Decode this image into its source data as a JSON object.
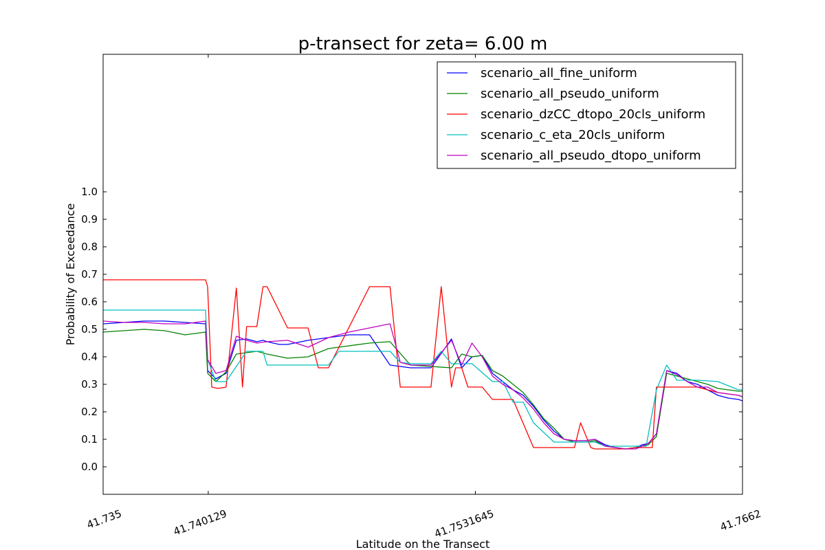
{
  "chart_data": {
    "type": "line",
    "title": "p-transect for zeta= 6.00 m",
    "xlabel": "Latitude on the Transect",
    "ylabel": "Probability of Exceedance",
    "xlim": [
      41.735,
      41.7662
    ],
    "ylim": [
      -0.1,
      1.5
    ],
    "xticks": [
      41.735,
      41.740129,
      41.7531645,
      41.7662
    ],
    "xtick_labels": [
      "41.735",
      "41.740129",
      "41.7531645",
      "41.7662"
    ],
    "yticks": [
      0.0,
      0.1,
      0.2,
      0.3,
      0.4,
      0.5,
      0.6,
      0.7,
      0.8,
      0.9,
      1.0
    ],
    "ytick_labels": [
      "0.0",
      "0.1",
      "0.2",
      "0.3",
      "0.4",
      "0.5",
      "0.6",
      "0.7",
      "0.8",
      "0.9",
      "1.0"
    ],
    "grid": false,
    "legend_position": "top-right",
    "series": [
      {
        "name": "scenario_all_fine_uniform",
        "color": "#0000ff",
        "x": [
          41.735,
          41.736,
          41.737,
          41.738,
          41.739,
          41.74,
          41.7401,
          41.7405,
          41.741,
          41.7415,
          41.742,
          41.7425,
          41.7428,
          41.743,
          41.7433,
          41.7436,
          41.744,
          41.745,
          41.746,
          41.747,
          41.748,
          41.749,
          41.75,
          41.751,
          41.752,
          41.7525,
          41.753,
          41.7535,
          41.754,
          41.7545,
          41.755,
          41.7555,
          41.756,
          41.7565,
          41.757,
          41.7575,
          41.758,
          41.7585,
          41.759,
          41.7595,
          41.76,
          41.7605,
          41.761,
          41.7613,
          41.7616,
          41.762,
          41.7625,
          41.763,
          41.7635,
          41.764,
          41.7645,
          41.765,
          41.7655,
          41.766,
          41.7662
        ],
        "y": [
          0.52,
          0.525,
          0.53,
          0.53,
          0.525,
          0.52,
          0.35,
          0.32,
          0.34,
          0.46,
          0.465,
          0.455,
          0.46,
          0.455,
          0.45,
          0.445,
          0.445,
          0.46,
          0.47,
          0.48,
          0.48,
          0.37,
          0.36,
          0.36,
          0.465,
          0.36,
          0.4,
          0.405,
          0.34,
          0.31,
          0.28,
          0.26,
          0.22,
          0.17,
          0.13,
          0.1,
          0.095,
          0.095,
          0.1,
          0.08,
          0.07,
          0.065,
          0.07,
          0.08,
          0.085,
          0.12,
          0.35,
          0.34,
          0.31,
          0.3,
          0.28,
          0.26,
          0.25,
          0.245,
          0.24
        ]
      },
      {
        "name": "scenario_all_pseudo_uniform",
        "color": "#008000",
        "x": [
          41.735,
          41.736,
          41.737,
          41.738,
          41.739,
          41.74,
          41.7401,
          41.7405,
          41.741,
          41.7415,
          41.742,
          41.7425,
          41.743,
          41.744,
          41.745,
          41.746,
          41.747,
          41.748,
          41.749,
          41.75,
          41.751,
          41.752,
          41.7525,
          41.753,
          41.7535,
          41.754,
          41.7545,
          41.755,
          41.7555,
          41.756,
          41.7565,
          41.757,
          41.7575,
          41.758,
          41.7585,
          41.759,
          41.7595,
          41.76,
          41.7605,
          41.761,
          41.7613,
          41.7616,
          41.762,
          41.7625,
          41.763,
          41.7635,
          41.764,
          41.7645,
          41.765,
          41.7655,
          41.766,
          41.7662
        ],
        "y": [
          0.49,
          0.495,
          0.5,
          0.495,
          0.48,
          0.49,
          0.34,
          0.31,
          0.345,
          0.41,
          0.415,
          0.42,
          0.41,
          0.395,
          0.4,
          0.43,
          0.44,
          0.45,
          0.455,
          0.37,
          0.365,
          0.36,
          0.41,
          0.4,
          0.405,
          0.35,
          0.33,
          0.3,
          0.27,
          0.225,
          0.175,
          0.14,
          0.1,
          0.09,
          0.09,
          0.095,
          0.075,
          0.07,
          0.065,
          0.07,
          0.075,
          0.08,
          0.11,
          0.34,
          0.33,
          0.32,
          0.31,
          0.3,
          0.285,
          0.28,
          0.275,
          0.275
        ]
      },
      {
        "name": "scenario_dzCC_dtopo_20cls_uniform",
        "color": "#ff0000",
        "x": [
          41.735,
          41.737,
          41.74,
          41.7401,
          41.7403,
          41.7406,
          41.741,
          41.7415,
          41.7418,
          41.742,
          41.7425,
          41.7428,
          41.743,
          41.744,
          41.745,
          41.7455,
          41.746,
          41.748,
          41.749,
          41.7495,
          41.75,
          41.751,
          41.7515,
          41.752,
          41.7522,
          41.7525,
          41.7528,
          41.753,
          41.7535,
          41.754,
          41.7545,
          41.755,
          41.756,
          41.757,
          41.758,
          41.7583,
          41.7588,
          41.759,
          41.76,
          41.7605,
          41.761,
          41.7615,
          41.7618,
          41.762,
          41.7625,
          41.763,
          41.764,
          41.765,
          41.766,
          41.7662
        ],
        "y": [
          0.68,
          0.68,
          0.68,
          0.655,
          0.29,
          0.285,
          0.29,
          0.65,
          0.29,
          0.51,
          0.51,
          0.655,
          0.655,
          0.505,
          0.505,
          0.36,
          0.36,
          0.655,
          0.655,
          0.29,
          0.29,
          0.29,
          0.655,
          0.29,
          0.36,
          0.36,
          0.29,
          0.29,
          0.29,
          0.245,
          0.245,
          0.245,
          0.07,
          0.07,
          0.07,
          0.16,
          0.07,
          0.065,
          0.065,
          0.065,
          0.07,
          0.07,
          0.07,
          0.29,
          0.29,
          0.29,
          0.29,
          0.27,
          0.26,
          0.255
        ]
      },
      {
        "name": "scenario_c_eta_20cls_uniform",
        "color": "#00bfbf",
        "x": [
          41.735,
          41.737,
          41.74,
          41.7401,
          41.7405,
          41.741,
          41.742,
          41.7428,
          41.743,
          41.744,
          41.745,
          41.746,
          41.7465,
          41.748,
          41.749,
          41.7495,
          41.75,
          41.751,
          41.7515,
          41.752,
          41.753,
          41.754,
          41.7545,
          41.755,
          41.7555,
          41.756,
          41.757,
          41.758,
          41.759,
          41.7595,
          41.76,
          41.761,
          41.7615,
          41.762,
          41.7625,
          41.763,
          41.764,
          41.765,
          41.766,
          41.7662
        ],
        "y": [
          0.57,
          0.57,
          0.57,
          0.39,
          0.31,
          0.31,
          0.42,
          0.42,
          0.37,
          0.37,
          0.37,
          0.37,
          0.42,
          0.42,
          0.42,
          0.38,
          0.375,
          0.375,
          0.42,
          0.375,
          0.375,
          0.31,
          0.31,
          0.235,
          0.235,
          0.16,
          0.09,
          0.09,
          0.09,
          0.075,
          0.075,
          0.075,
          0.075,
          0.28,
          0.37,
          0.315,
          0.315,
          0.31,
          0.28,
          0.28
        ]
      },
      {
        "name": "scenario_all_pseudo_dtopo_uniform",
        "color": "#bf00bf",
        "x": [
          41.735,
          41.736,
          41.737,
          41.738,
          41.739,
          41.74,
          41.7401,
          41.7405,
          41.741,
          41.7415,
          41.742,
          41.7425,
          41.743,
          41.744,
          41.745,
          41.746,
          41.747,
          41.748,
          41.749,
          41.7495,
          41.75,
          41.751,
          41.752,
          41.7525,
          41.753,
          41.7535,
          41.754,
          41.7545,
          41.755,
          41.7555,
          41.756,
          41.7565,
          41.757,
          41.7575,
          41.758,
          41.7585,
          41.759,
          41.7595,
          41.76,
          41.7605,
          41.761,
          41.7613,
          41.7616,
          41.762,
          41.7625,
          41.763,
          41.7635,
          41.764,
          41.7645,
          41.765,
          41.7655,
          41.766,
          41.7662
        ],
        "y": [
          0.53,
          0.525,
          0.525,
          0.52,
          0.52,
          0.53,
          0.39,
          0.34,
          0.35,
          0.475,
          0.46,
          0.45,
          0.455,
          0.46,
          0.435,
          0.47,
          0.49,
          0.505,
          0.52,
          0.38,
          0.37,
          0.37,
          0.46,
          0.37,
          0.45,
          0.4,
          0.33,
          0.3,
          0.28,
          0.25,
          0.21,
          0.16,
          0.12,
          0.1,
          0.095,
          0.095,
          0.1,
          0.075,
          0.07,
          0.065,
          0.065,
          0.075,
          0.085,
          0.12,
          0.35,
          0.335,
          0.31,
          0.29,
          0.29,
          0.27,
          0.265,
          0.26,
          0.255
        ]
      }
    ]
  }
}
